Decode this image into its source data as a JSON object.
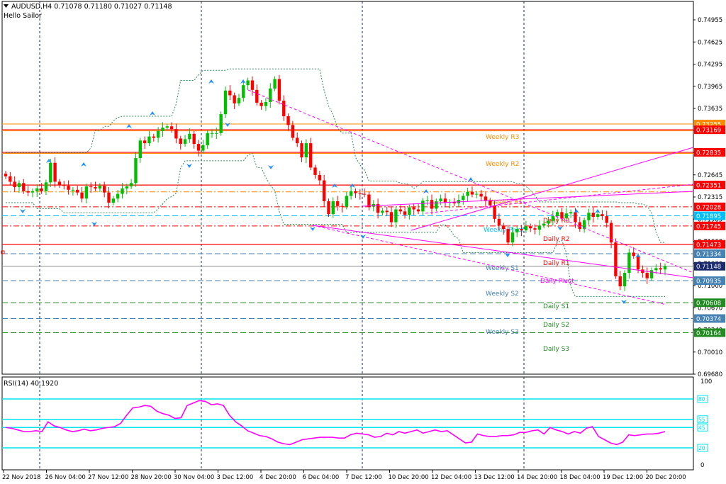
{
  "header": {
    "symbol_line": "AUDUSD,H4  0.71078 0.71180 0.71027 0.71148",
    "indicator_name": "Hello Sailor",
    "rsi_label": "RSI(14) 40.1920"
  },
  "colors": {
    "bull": "#00c000",
    "bear": "#ff0000",
    "magenta": "#ff00ff",
    "teal_dotted": "#2e8b57",
    "weekly_resistance": "#ff8c00",
    "weekly_support": "#4682b4",
    "daily_resistance": "#ff0000",
    "daily_support": "#228b22",
    "rsi_line": "#ff00ff",
    "rsi_levels": "#00e5ee",
    "fractal": "#1e90ff"
  },
  "price_axis": {
    "labels": [
      "0.74955",
      "0.74625",
      "0.74295",
      "0.73965",
      "0.73635",
      "0.73295",
      "0.72975",
      "0.72645",
      "0.72315",
      "0.71985",
      "0.71660",
      "0.71330",
      "0.71000",
      "0.70670",
      "0.70340",
      "0.70010",
      "0.69680"
    ]
  },
  "time_axis": {
    "labels": [
      "22 Nov 2018",
      "26 Nov 04:00",
      "27 Nov 12:00",
      "28 Nov 20:00",
      "30 Nov 04:00",
      "3 Dec 12:00",
      "4 Dec 20:00",
      "6 Dec 04:00",
      "7 Dec 12:00",
      "10 Dec 20:00",
      "12 Dec 04:00",
      "13 Dec 12:00",
      "14 Dec 20:00",
      "18 Dec 04:00",
      "19 Dec 12:00",
      "20 Dec 20:00"
    ]
  },
  "levels": [
    {
      "name": "Weekly R3",
      "price": 0.73255,
      "style": "solid",
      "color": "#ff8c00",
      "tag": "0.73255"
    },
    {
      "name": "",
      "price": 0.73169,
      "style": "solid",
      "color": "#ff0000",
      "tag": "0.73169"
    },
    {
      "name": "Weekly R2",
      "price": 0.72835,
      "style": "solid",
      "color": "#ff0000",
      "tag": "0.72835"
    },
    {
      "name": "",
      "price": 0.72351,
      "style": "solid",
      "color": "#ff0000",
      "tag": "0.72351"
    },
    {
      "name": "Weekly R1",
      "price": 0.7225,
      "style": "dashdot",
      "color": "#ff8c00",
      "tag": ""
    },
    {
      "name": "",
      "price": 0.72028,
      "style": "dashdot",
      "color": "#ff0000",
      "tag": "0.72028"
    },
    {
      "name": "Weekly Pivot",
      "price": 0.71895,
      "style": "dashed",
      "color": "#00bfff",
      "tag": "0.71895"
    },
    {
      "name": "",
      "price": 0.71745,
      "style": "dashdot",
      "color": "#ff0000",
      "tag": "0.71745"
    },
    {
      "name": "",
      "price": 0.71473,
      "style": "solid",
      "color": "#ff0000",
      "tag": "0.71473"
    },
    {
      "name": "",
      "price": 0.71334,
      "style": "dashed",
      "color": "#4682b4",
      "tag": "0.71334"
    },
    {
      "name": "",
      "price": 0.71148,
      "style": "solid",
      "color": "#8c8c8c",
      "tag": "0.71148"
    },
    {
      "name": "",
      "price": 0.70935,
      "style": "dashed",
      "color": "#4682b4",
      "tag": "0.70935"
    },
    {
      "name": "",
      "price": 0.70608,
      "style": "dashed",
      "color": "#228b22",
      "tag": "0.70608"
    },
    {
      "name": "",
      "price": 0.70374,
      "style": "dashed",
      "color": "#4682b4",
      "tag": "0.70374"
    },
    {
      "name": "",
      "price": 0.70164,
      "style": "dashed",
      "color": "#228b22",
      "tag": "0.70164"
    }
  ],
  "pivot_labels": [
    {
      "text": "Weekly R3",
      "color": "#ff8c00"
    },
    {
      "text": "Weekly R2",
      "color": "#ff8c00"
    },
    {
      "text": "Weekly R1",
      "color": "#ff8c00"
    },
    {
      "text": "Weekly Pivot",
      "color": "#00bfff"
    },
    {
      "text": "Weekly S1",
      "color": "#4682b4"
    },
    {
      "text": "Weekly S2",
      "color": "#4682b4"
    },
    {
      "text": "Weekly S3",
      "color": "#4682b4"
    },
    {
      "text": "Daily R3",
      "color": "#ff0000"
    },
    {
      "text": "Daily R2",
      "color": "#ff0000"
    },
    {
      "text": "Daily R1",
      "color": "#ff0000"
    },
    {
      "text": "Daily Pivot",
      "color": "#ff00ff"
    },
    {
      "text": "Daily S1",
      "color": "#228b22"
    },
    {
      "text": "Daily S2",
      "color": "#228b22"
    },
    {
      "text": "Daily S3",
      "color": "#228b22"
    }
  ],
  "rsi": {
    "axis_labels": [
      "100",
      "0"
    ],
    "levels": [
      {
        "value": 80,
        "tag": "80"
      },
      {
        "value": 55,
        "tag": "55"
      },
      {
        "value": 45,
        "tag": "45"
      },
      {
        "value": 20,
        "tag": "20"
      }
    ],
    "values": [
      45,
      44,
      42,
      40,
      40,
      41,
      40,
      52,
      47,
      45,
      42,
      40,
      41,
      43,
      41,
      42,
      44,
      45,
      46,
      50,
      60,
      69,
      70,
      72,
      71,
      65,
      62,
      60,
      56,
      57,
      72,
      75,
      78,
      77,
      73,
      74,
      72,
      60,
      52,
      47,
      41,
      38,
      35,
      34,
      31,
      27,
      25,
      24,
      27,
      30,
      31,
      32,
      33,
      33,
      33,
      32,
      32,
      36,
      38,
      37,
      36,
      33,
      34,
      38,
      36,
      40,
      38,
      40,
      42,
      38,
      40,
      42,
      40,
      41,
      36,
      31,
      26,
      27,
      37,
      35,
      34,
      34,
      35,
      35,
      36,
      39,
      39,
      41,
      42,
      37,
      45,
      42,
      40,
      37,
      40,
      38,
      44,
      46,
      34,
      30,
      26,
      24,
      27,
      36,
      35,
      36,
      37,
      37,
      38,
      40
    ]
  },
  "chart_data": {
    "type": "candlestick",
    "symbol": "AUDUSD",
    "timeframe": "H4",
    "ohlc": {
      "open": 0.71078,
      "high": 0.7118,
      "low": 0.71027,
      "close": 0.71148
    },
    "closes": [
      0.7248,
      0.724,
      0.7232,
      0.7238,
      0.7226,
      0.7224,
      0.7226,
      0.723,
      0.7226,
      0.7239,
      0.7268,
      0.724,
      0.7235,
      0.7234,
      0.7228,
      0.7228,
      0.7224,
      0.7215,
      0.7233,
      0.7232,
      0.723,
      0.7234,
      0.7224,
      0.7209,
      0.7215,
      0.7222,
      0.723,
      0.7233,
      0.7238,
      0.7275,
      0.7301,
      0.7297,
      0.7307,
      0.7305,
      0.7315,
      0.732,
      0.7322,
      0.7318,
      0.7304,
      0.7296,
      0.7303,
      0.7311,
      0.7296,
      0.7286,
      0.7294,
      0.7312,
      0.7312,
      0.7312,
      0.734,
      0.7375,
      0.7368,
      0.7356,
      0.7364,
      0.7383,
      0.739,
      0.7376,
      0.7357,
      0.7352,
      0.7358,
      0.7378,
      0.7392,
      0.736,
      0.7337,
      0.7324,
      0.7305,
      0.7297,
      0.7276,
      0.7297,
      0.7261,
      0.725,
      0.7242,
      0.7211,
      0.7192,
      0.7211,
      0.7204,
      0.7203,
      0.7219,
      0.7226,
      0.7223,
      0.7222,
      0.7221,
      0.7203,
      0.7207,
      0.7194,
      0.7197,
      0.7195,
      0.718,
      0.7199,
      0.7196,
      0.7191,
      0.7202,
      0.7199,
      0.7196,
      0.7212,
      0.7213,
      0.72,
      0.7211,
      0.7215,
      0.7209,
      0.721,
      0.7208,
      0.7213,
      0.7219,
      0.7225,
      0.7221,
      0.7222,
      0.7218,
      0.7212,
      0.7205,
      0.7185,
      0.7175,
      0.717,
      0.715,
      0.7165,
      0.717,
      0.7168,
      0.7174,
      0.7171,
      0.7169,
      0.7175,
      0.7178,
      0.7182,
      0.7189,
      0.7195,
      0.7186,
      0.7193,
      0.7195,
      0.718,
      0.717,
      0.7183,
      0.7194,
      0.7188,
      0.7192,
      0.7189,
      0.7179,
      0.715,
      0.71,
      0.7085,
      0.7105,
      0.7135,
      0.713,
      0.711,
      0.7105,
      0.7097,
      0.7109,
      0.7112,
      0.711,
      0.7115
    ]
  }
}
